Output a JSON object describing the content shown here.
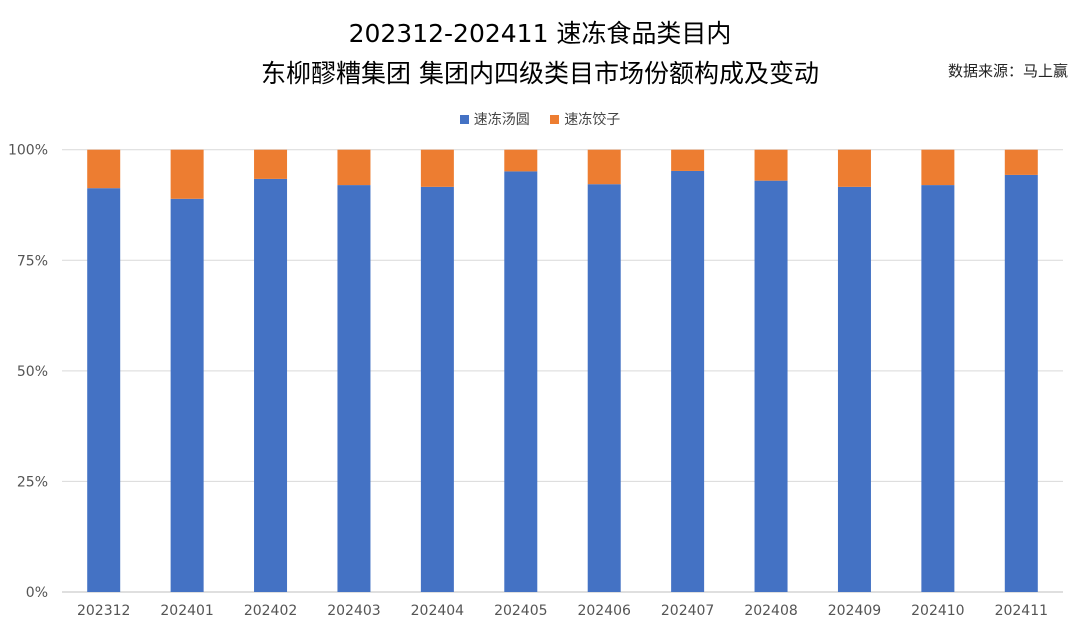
{
  "chart_data": {
    "type": "bar",
    "stacked": "percent",
    "title": "202312-202411 速冻食品类目内",
    "subtitle": "东柳醪糟集团 集团内四级类目市场份额构成及变动",
    "source": "数据来源：马上赢",
    "categories": [
      "202312",
      "202401",
      "202402",
      "202403",
      "202404",
      "202405",
      "202406",
      "202407",
      "202408",
      "202409",
      "202410",
      "202411"
    ],
    "series": [
      {
        "name": "速冻汤圆",
        "color": "#4472C4",
        "values": [
          91.3,
          88.9,
          93.4,
          92.0,
          91.6,
          95.1,
          92.2,
          95.2,
          93.0,
          91.6,
          92.0,
          94.3
        ]
      },
      {
        "name": "速冻饺子",
        "color": "#ED7D31",
        "values": [
          8.7,
          11.1,
          6.6,
          8.0,
          8.4,
          4.9,
          7.8,
          4.8,
          7.0,
          8.4,
          8.0,
          5.7
        ]
      }
    ],
    "yticks": [
      "0%",
      "25%",
      "50%",
      "75%",
      "100%"
    ],
    "ylim": [
      0,
      100
    ],
    "grid": true,
    "legend": "top"
  }
}
